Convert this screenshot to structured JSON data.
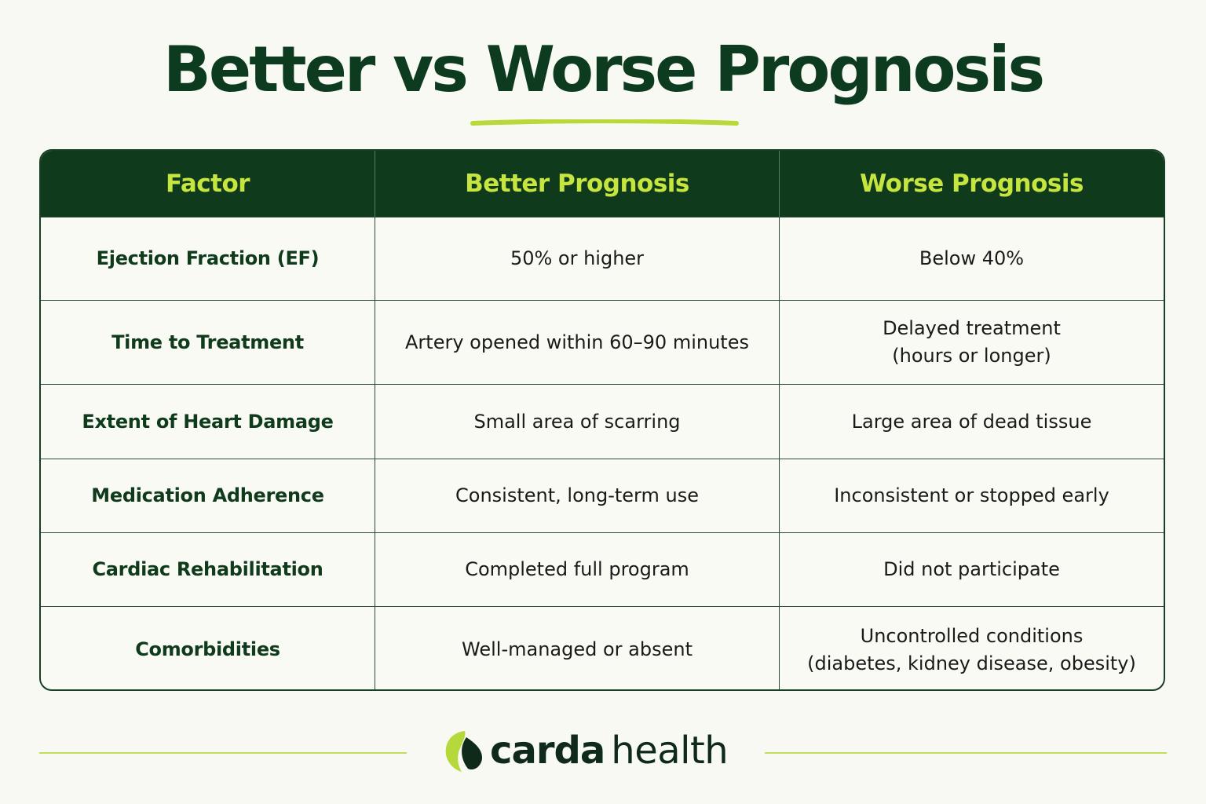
{
  "title": "Better vs Worse Prognosis",
  "table": {
    "headers": [
      "Factor",
      "Better Prognosis",
      "Worse Prognosis"
    ],
    "rows": [
      {
        "factor": "Ejection Fraction (EF)",
        "better": [
          "50% or higher"
        ],
        "worse": [
          "Below 40%"
        ]
      },
      {
        "factor": "Time to Treatment",
        "better": [
          "Artery opened within 60–90 minutes"
        ],
        "worse": [
          "Delayed treatment",
          "(hours or longer)"
        ]
      },
      {
        "factor": "Extent of Heart Damage",
        "better": [
          "Small area of scarring"
        ],
        "worse": [
          "Large area of dead tissue"
        ]
      },
      {
        "factor": "Medication Adherence",
        "better": [
          "Consistent, long-term use"
        ],
        "worse": [
          "Inconsistent or stopped early"
        ]
      },
      {
        "factor": "Cardiac Rehabilitation",
        "better": [
          "Completed full program"
        ],
        "worse": [
          "Did not participate"
        ]
      },
      {
        "factor": "Comorbidities",
        "better": [
          "Well-managed or absent"
        ],
        "worse": [
          "Uncontrolled conditions",
          "(diabetes, kidney disease, obesity)"
        ]
      }
    ]
  },
  "brand": {
    "name_bold": "carda",
    "name_light": "health",
    "logo_icon": "leaf-logo-icon"
  },
  "colors": {
    "primary": "#0f3b1c",
    "accent": "#c6e53f",
    "background": "#f9f9f4"
  }
}
